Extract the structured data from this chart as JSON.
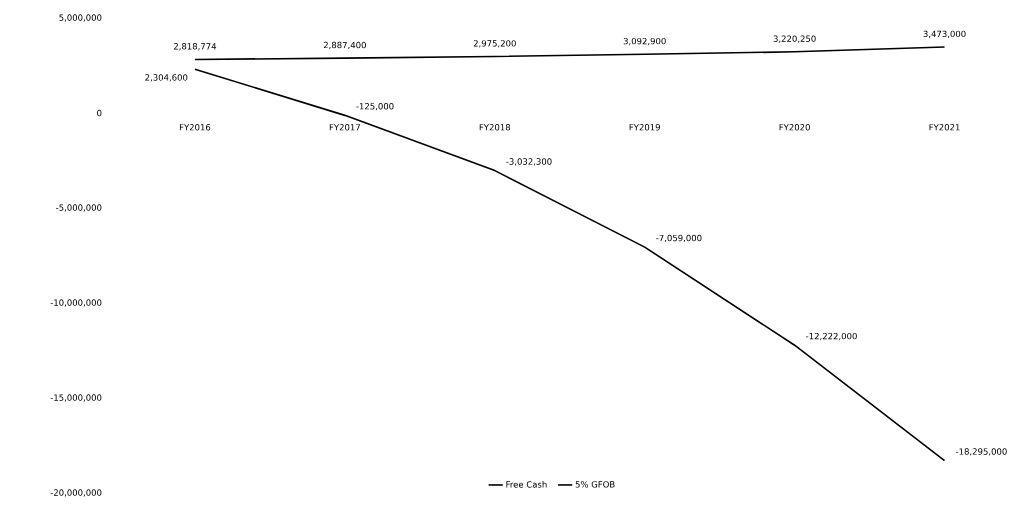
{
  "chart_data": {
    "type": "line",
    "categories": [
      "FY2016",
      "FY2017",
      "FY2018",
      "FY2019",
      "FY2020",
      "FY2021"
    ],
    "series": [
      {
        "name": "Free Cash",
        "color": "#000000",
        "values": [
          2304600,
          -125000,
          -3032300,
          -7059000,
          -12222000,
          -18295000
        ],
        "value_labels": [
          "2,304,600",
          "-125,000",
          "-3,032,300",
          "-7,059,000",
          "-12,222,000",
          "-18,295,000"
        ]
      },
      {
        "name": "5% GFOB",
        "color": "#000000",
        "values": [
          2818774,
          2887400,
          2975200,
          3092900,
          3220250,
          3473000
        ],
        "value_labels": [
          "2,818,774",
          "2,887,400",
          "2,975,200",
          "3,092,900",
          "3,220,250",
          "3,473,000"
        ]
      }
    ],
    "ylim": [
      -20000000,
      5000000
    ],
    "yticks": [
      {
        "value": -20000000,
        "label": "-20,000,000"
      },
      {
        "value": -15000000,
        "label": "-15,000,000"
      },
      {
        "value": -10000000,
        "label": "-10,000,000"
      },
      {
        "value": -5000000,
        "label": "-5,000,000"
      },
      0,
      {
        "value": 5000000,
        "label": "5,000,000"
      }
    ],
    "grid": false,
    "legend": "bottom",
    "marker": "none",
    "line_style": "solid"
  }
}
